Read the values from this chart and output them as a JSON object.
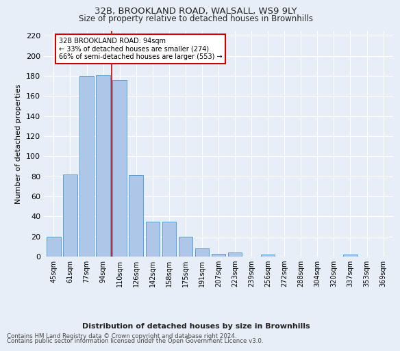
{
  "title1": "32B, BROOKLAND ROAD, WALSALL, WS9 9LY",
  "title2": "Size of property relative to detached houses in Brownhills",
  "xlabel": "Distribution of detached houses by size in Brownhills",
  "ylabel": "Number of detached properties",
  "categories": [
    "45sqm",
    "61sqm",
    "77sqm",
    "94sqm",
    "110sqm",
    "126sqm",
    "142sqm",
    "158sqm",
    "175sqm",
    "191sqm",
    "207sqm",
    "223sqm",
    "239sqm",
    "256sqm",
    "272sqm",
    "288sqm",
    "304sqm",
    "320sqm",
    "337sqm",
    "353sqm",
    "369sqm"
  ],
  "values": [
    20,
    82,
    180,
    181,
    176,
    81,
    35,
    35,
    20,
    8,
    3,
    4,
    0,
    2,
    0,
    0,
    0,
    0,
    2,
    0,
    0
  ],
  "bar_color": "#aec6e8",
  "bar_edge_color": "#5a9fd4",
  "property_label": "32B BROOKLAND ROAD: 94sqm",
  "annotation_line1": "← 33% of detached houses are smaller (274)",
  "annotation_line2": "66% of semi-detached houses are larger (553) →",
  "vline_color": "#cc0000",
  "vline_x_index": 3.5,
  "annotation_box_color": "#cc0000",
  "ylim": [
    0,
    225
  ],
  "yticks": [
    0,
    20,
    40,
    60,
    80,
    100,
    120,
    140,
    160,
    180,
    200,
    220
  ],
  "footer1": "Contains HM Land Registry data © Crown copyright and database right 2024.",
  "footer2": "Contains public sector information licensed under the Open Government Licence v3.0.",
  "background_color": "#e8eef7",
  "plot_bg_color": "#e8eef7"
}
